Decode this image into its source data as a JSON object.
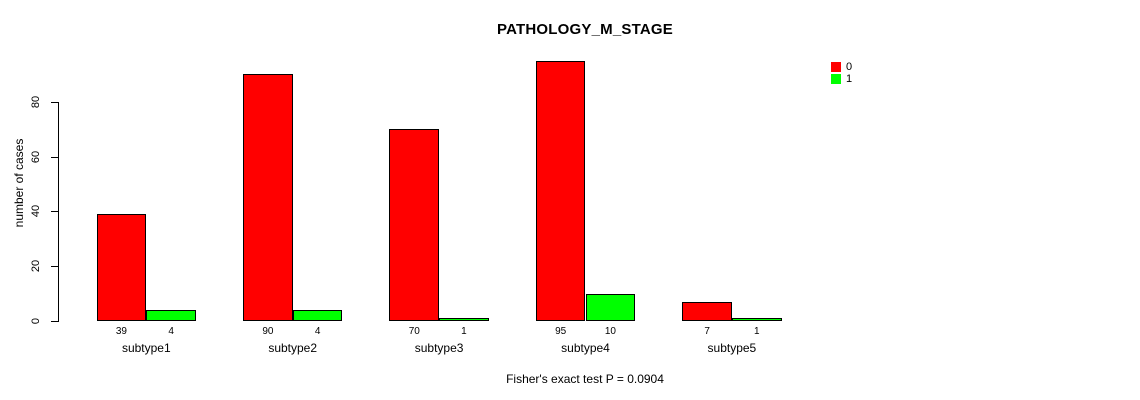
{
  "chart_data": {
    "type": "bar",
    "title": "PATHOLOGY_M_STAGE",
    "ylabel": "number of cases",
    "xlabel": "",
    "footnote": "Fisher's exact test P = 0.0904",
    "categories": [
      "subtype1",
      "subtype2",
      "subtype3",
      "subtype4",
      "subtype5"
    ],
    "series": [
      {
        "name": "0",
        "color": "#ff0000",
        "values": [
          39,
          90,
          70,
          95,
          7
        ]
      },
      {
        "name": "1",
        "color": "#00ff00",
        "values": [
          4,
          4,
          1,
          10,
          1
        ]
      }
    ],
    "yticks": [
      0,
      20,
      40,
      60,
      80
    ],
    "ylim": [
      0,
      95
    ],
    "grid": false,
    "legend_position": "top-right",
    "bar_border_color": "#000000",
    "axis_color": "#000000",
    "background_color": "#ffffff",
    "value_labels_shown": true
  }
}
